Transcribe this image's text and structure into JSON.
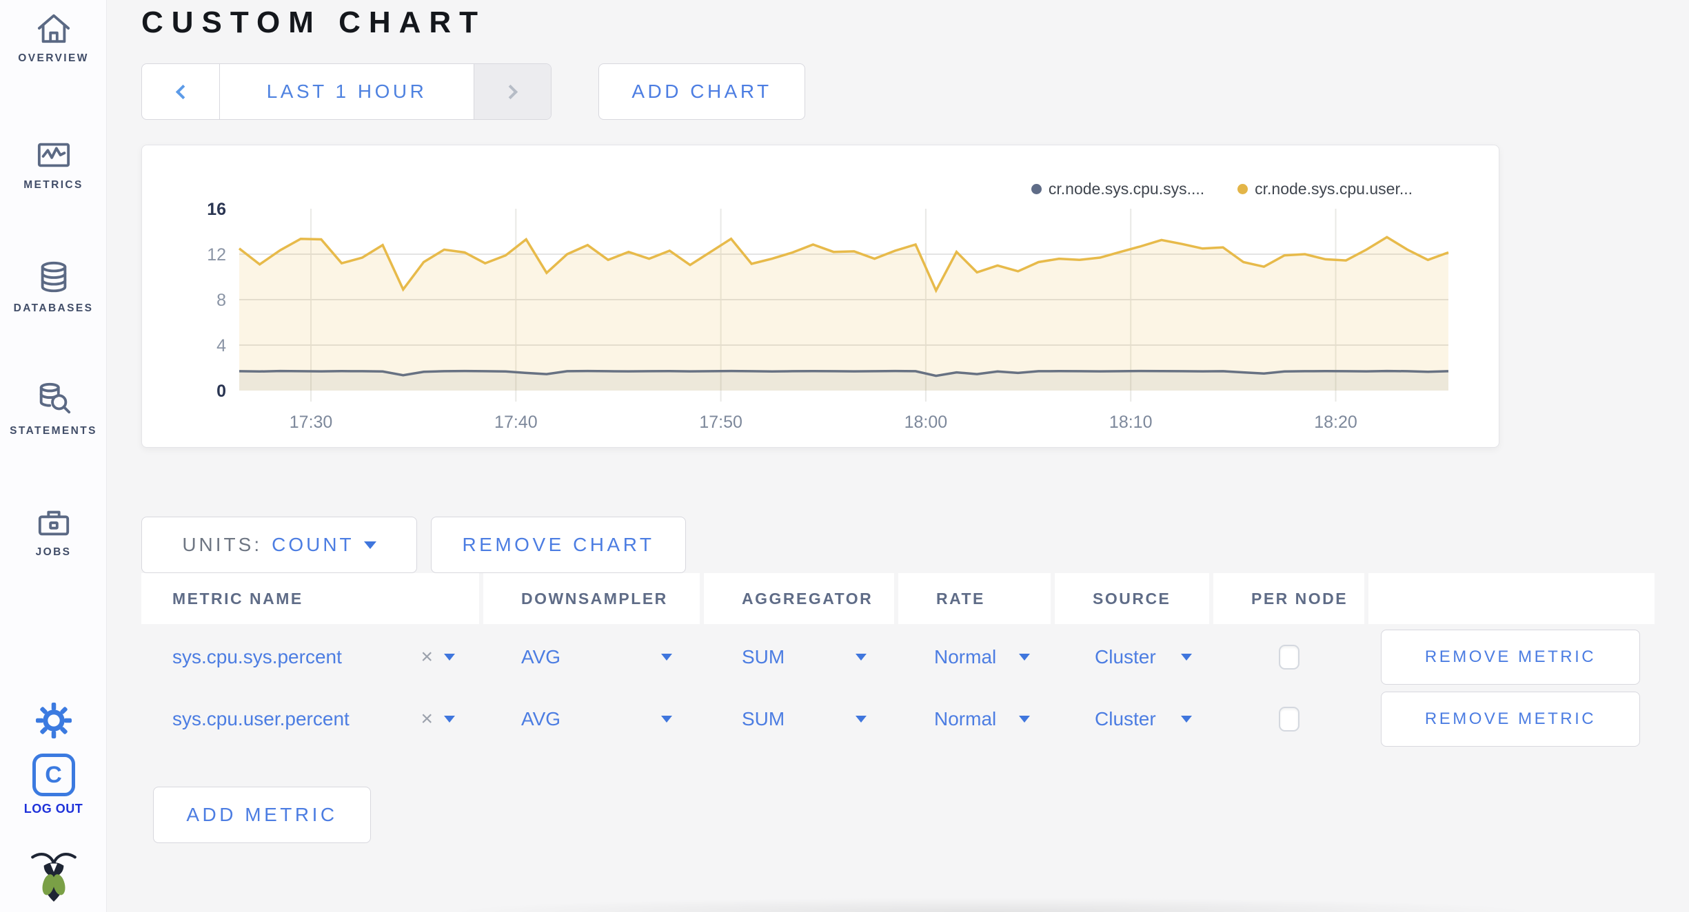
{
  "header": {
    "title": "CUSTOM CHART"
  },
  "toolbar": {
    "time_range_label": "LAST 1 HOUR",
    "add_chart_label": "ADD CHART"
  },
  "sidebar": {
    "items": [
      {
        "label": "OVERVIEW",
        "icon": "home-icon"
      },
      {
        "label": "METRICS",
        "icon": "metrics-icon"
      },
      {
        "label": "DATABASES",
        "icon": "databases-icon"
      },
      {
        "label": "STATEMENTS",
        "icon": "statements-icon"
      },
      {
        "label": "JOBS",
        "icon": "jobs-icon"
      }
    ],
    "settings_icon": "gear-icon",
    "logout": {
      "label": "LOG OUT",
      "icon_letter": "C"
    },
    "brand_icon": "cockroach-logo"
  },
  "chart_card": {
    "legend": [
      {
        "label": "cr.node.sys.cpu.sys....",
        "color": "#5f6c87"
      },
      {
        "label": "cr.node.sys.cpu.user...",
        "color": "#e3b548"
      }
    ]
  },
  "chart_data": {
    "type": "line",
    "title": "",
    "x_unit": "time",
    "x_start": "17:26:30",
    "x_step_minutes": 1,
    "x_ticks": {
      "labels": [
        "17:30",
        "17:40",
        "17:50",
        "18:00",
        "18:10",
        "18:20"
      ],
      "offsets_minutes": [
        3.5,
        13.5,
        23.5,
        33.5,
        43.5,
        53.5
      ]
    },
    "y_ticks": [
      0,
      4,
      8,
      12,
      16
    ],
    "ylim": [
      0,
      16
    ],
    "grid": true,
    "legend_position": "top-right",
    "series": [
      {
        "name": "cr.node.sys.cpu.sys....",
        "color": "#677182",
        "fill": "rgba(103,113,130,0.10)",
        "values": [
          1.7,
          1.68,
          1.72,
          1.7,
          1.69,
          1.71,
          1.7,
          1.68,
          1.35,
          1.65,
          1.7,
          1.72,
          1.7,
          1.68,
          1.55,
          1.45,
          1.7,
          1.72,
          1.7,
          1.69,
          1.7,
          1.71,
          1.69,
          1.7,
          1.72,
          1.7,
          1.68,
          1.7,
          1.71,
          1.7,
          1.69,
          1.7,
          1.72,
          1.7,
          1.3,
          1.6,
          1.45,
          1.68,
          1.55,
          1.7,
          1.71,
          1.7,
          1.69,
          1.7,
          1.72,
          1.71,
          1.7,
          1.69,
          1.7,
          1.6,
          1.5,
          1.68,
          1.7,
          1.71,
          1.7,
          1.69,
          1.72,
          1.7,
          1.65,
          1.7
        ]
      },
      {
        "name": "cr.node.sys.cpu.user...",
        "color": "#e7ba4a",
        "fill": "rgba(231,186,74,0.14)",
        "values": [
          12.5,
          11.1,
          12.35,
          13.35,
          13.3,
          11.2,
          11.7,
          12.8,
          8.9,
          11.3,
          12.4,
          12.15,
          11.2,
          11.9,
          13.3,
          10.35,
          12.0,
          12.8,
          11.5,
          12.2,
          11.6,
          12.3,
          11.05,
          12.2,
          13.35,
          11.15,
          11.6,
          12.15,
          12.85,
          12.2,
          12.25,
          11.6,
          12.3,
          12.85,
          8.8,
          12.2,
          10.4,
          11.0,
          10.5,
          11.3,
          11.6,
          11.5,
          11.7,
          12.2,
          12.7,
          13.25,
          12.9,
          12.5,
          12.6,
          11.3,
          10.9,
          11.9,
          12.0,
          11.55,
          11.45,
          12.4,
          13.5,
          12.4,
          11.5,
          12.15
        ]
      }
    ]
  },
  "chart_controls": {
    "units_label": "UNITS:",
    "units_value": "COUNT",
    "remove_chart_label": "REMOVE CHART",
    "add_metric_label": "ADD METRIC"
  },
  "metrics_table": {
    "columns": [
      "METRIC NAME",
      "DOWNSAMPLER",
      "AGGREGATOR",
      "RATE",
      "SOURCE",
      "PER NODE",
      ""
    ],
    "rows": [
      {
        "metric_name": "sys.cpu.sys.percent",
        "remove_x": "×",
        "downsampler": "AVG",
        "aggregator": "SUM",
        "rate": "Normal",
        "source": "Cluster",
        "per_node_checked": false,
        "remove_metric_label": "REMOVE METRIC"
      },
      {
        "metric_name": "sys.cpu.user.percent",
        "remove_x": "×",
        "downsampler": "AVG",
        "aggregator": "SUM",
        "rate": "Normal",
        "source": "Cluster",
        "per_node_checked": false,
        "remove_metric_label": "REMOVE METRIC"
      }
    ]
  }
}
